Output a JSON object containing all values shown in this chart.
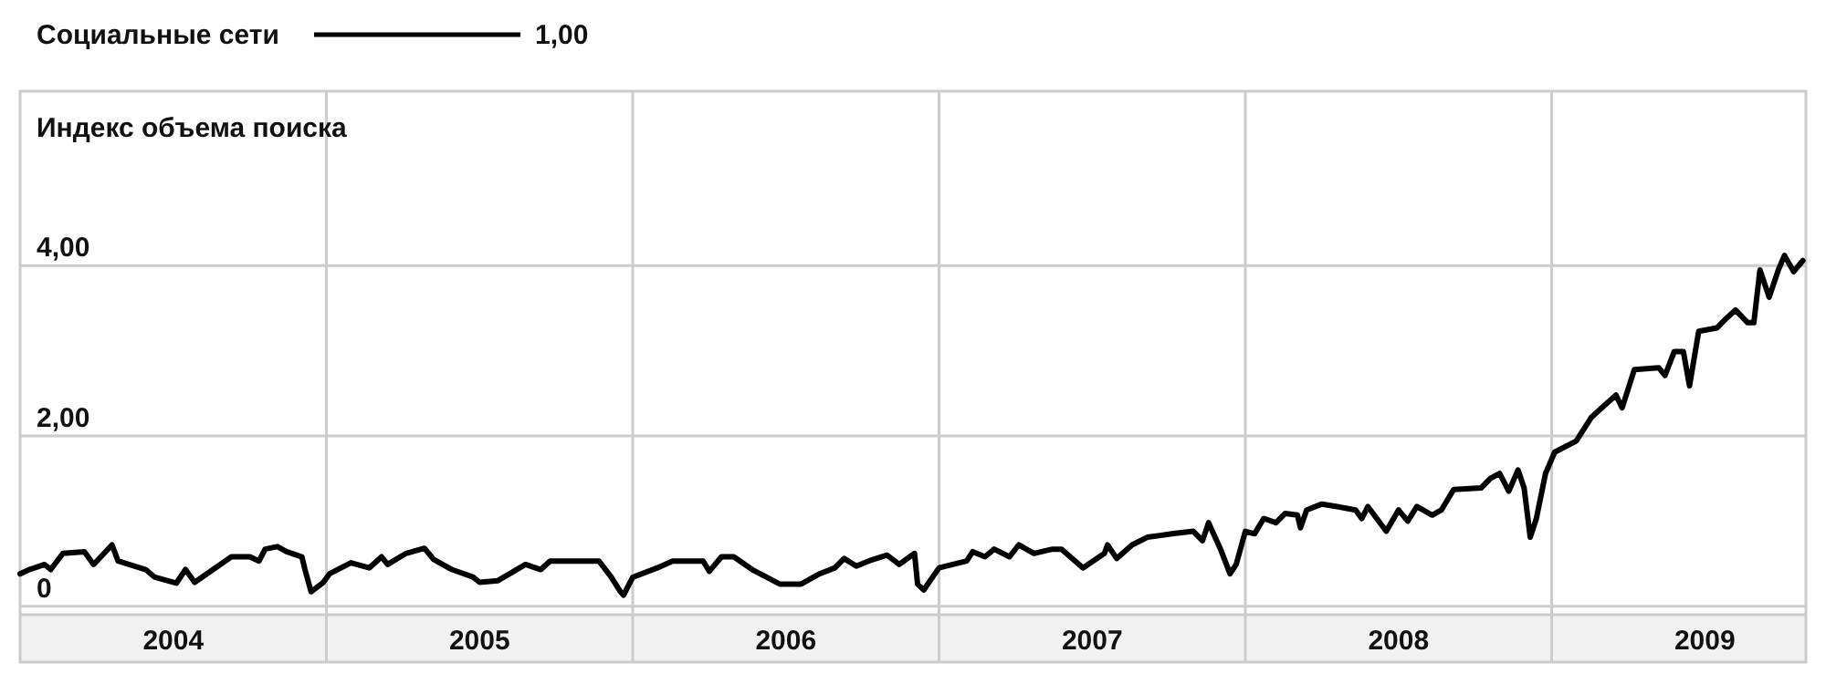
{
  "chart_data": {
    "type": "line",
    "ylabel": "Индекс объема поиска",
    "x": [
      2004.0,
      2004.03,
      2004.08,
      2004.1,
      2004.14,
      2004.21,
      2004.24,
      2004.3,
      2004.32,
      2004.41,
      2004.44,
      2004.51,
      2004.54,
      2004.57,
      2004.63,
      2004.69,
      2004.75,
      2004.78,
      2004.8,
      2004.84,
      2004.87,
      2004.92,
      2004.93,
      2004.95,
      2004.99,
      2005.01,
      2005.08,
      2005.14,
      2005.18,
      2005.2,
      2005.26,
      2005.32,
      2005.35,
      2005.41,
      2005.48,
      2005.5,
      2005.56,
      2005.65,
      2005.7,
      2005.73,
      2005.89,
      2005.93,
      2005.96,
      2005.97,
      2006.0,
      2006.08,
      2006.13,
      2006.23,
      2006.25,
      2006.29,
      2006.33,
      2006.39,
      2006.48,
      2006.55,
      2006.61,
      2006.66,
      2006.69,
      2006.73,
      2006.77,
      2006.83,
      2006.87,
      2006.92,
      2006.93,
      2006.95,
      2007.0,
      2007.09,
      2007.11,
      2007.15,
      2007.18,
      2007.23,
      2007.26,
      2007.31,
      2007.37,
      2007.4,
      2007.47,
      2007.54,
      2007.55,
      2007.58,
      2007.63,
      2007.68,
      2007.76,
      2007.83,
      2007.86,
      2007.88,
      2007.92,
      2007.95,
      2007.97,
      2008.0,
      2008.03,
      2008.06,
      2008.1,
      2008.13,
      2008.17,
      2008.18,
      2008.2,
      2008.25,
      2008.3,
      2008.36,
      2008.38,
      2008.4,
      2008.46,
      2008.5,
      2008.53,
      2008.56,
      2008.61,
      2008.64,
      2008.68,
      2008.77,
      2008.8,
      2008.83,
      2008.86,
      2008.89,
      2008.91,
      2008.93,
      2008.95,
      2008.98,
      2009.01,
      2009.08,
      2009.13,
      2009.17,
      2009.21,
      2009.23,
      2009.27,
      2009.35,
      2009.37,
      2009.4,
      2009.43,
      2009.45,
      2009.48,
      2009.54,
      2009.57,
      2009.6,
      2009.64,
      2009.66,
      2009.68,
      2009.71,
      2009.74,
      2009.76,
      2009.79,
      2009.82
    ],
    "series": [
      {
        "name": "Социальные сети",
        "color": "#000000",
        "values": [
          0.38,
          0.43,
          0.49,
          0.43,
          0.62,
          0.64,
          0.49,
          0.72,
          0.53,
          0.43,
          0.34,
          0.27,
          0.43,
          0.28,
          0.43,
          0.58,
          0.58,
          0.53,
          0.67,
          0.7,
          0.64,
          0.58,
          0.43,
          0.17,
          0.28,
          0.38,
          0.51,
          0.45,
          0.58,
          0.49,
          0.62,
          0.68,
          0.55,
          0.43,
          0.34,
          0.28,
          0.3,
          0.49,
          0.43,
          0.53,
          0.53,
          0.34,
          0.17,
          0.13,
          0.34,
          0.45,
          0.53,
          0.53,
          0.41,
          0.58,
          0.58,
          0.43,
          0.26,
          0.26,
          0.38,
          0.45,
          0.56,
          0.47,
          0.53,
          0.6,
          0.49,
          0.62,
          0.26,
          0.19,
          0.45,
          0.53,
          0.64,
          0.58,
          0.67,
          0.58,
          0.72,
          0.62,
          0.67,
          0.67,
          0.45,
          0.62,
          0.72,
          0.56,
          0.72,
          0.81,
          0.85,
          0.88,
          0.77,
          0.98,
          0.66,
          0.38,
          0.49,
          0.88,
          0.85,
          1.03,
          0.98,
          1.09,
          1.07,
          0.92,
          1.13,
          1.2,
          1.17,
          1.13,
          1.03,
          1.17,
          0.88,
          1.13,
          1.0,
          1.17,
          1.07,
          1.13,
          1.37,
          1.39,
          1.5,
          1.56,
          1.35,
          1.6,
          1.39,
          0.81,
          1.03,
          1.56,
          1.81,
          1.94,
          2.22,
          2.35,
          2.48,
          2.33,
          2.78,
          2.8,
          2.71,
          2.99,
          2.99,
          2.59,
          3.23,
          3.27,
          3.38,
          3.48,
          3.33,
          3.33,
          3.95,
          3.63,
          3.95,
          4.12,
          3.93,
          4.06
        ]
      }
    ],
    "xlim": [
      2004,
      2009.83
    ],
    "xticks": [
      {
        "value": 2004.5,
        "label": "2004"
      },
      {
        "value": 2005,
        "label": null
      },
      {
        "value": 2005.5,
        "label": "2005"
      },
      {
        "value": 2006,
        "label": null
      },
      {
        "value": 2006.5,
        "label": "2006"
      },
      {
        "value": 2007,
        "label": null
      },
      {
        "value": 2007.5,
        "label": "2007"
      },
      {
        "value": 2008,
        "label": null
      },
      {
        "value": 2008.5,
        "label": "2008"
      },
      {
        "value": 2009,
        "label": null
      },
      {
        "value": 2009.5,
        "label": "2009"
      }
    ],
    "ylim": [
      -0.1,
      6.05
    ],
    "yticks": [
      {
        "value": 0,
        "label": "0"
      },
      {
        "value": 2,
        "label": "2,00"
      },
      {
        "value": 4,
        "label": "4,00"
      }
    ],
    "grid": true,
    "legend": "top left",
    "line_style": "solid",
    "annotations": [
      "1,00"
    ]
  }
}
